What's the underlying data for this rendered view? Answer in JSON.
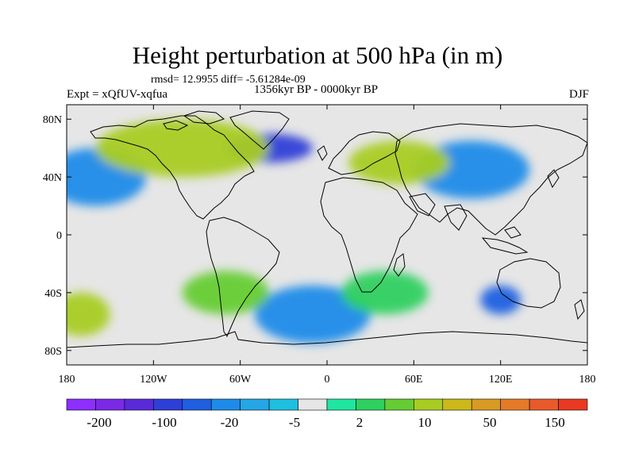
{
  "title": "Height perturbation at 500 hPa (in m)",
  "stats": "rmsd= 12.9955 diff= -5.61284e-09",
  "experiment": "Expt = xQfUV-xqfua",
  "period": "1356kyr BP - 0000kyr BP",
  "season": "DJF",
  "map": {
    "lat_ticks": [
      "80N",
      "40N",
      "0",
      "40S",
      "80S"
    ],
    "lon_ticks": [
      "180",
      "120W",
      "60W",
      "0",
      "60E",
      "120E",
      "180"
    ],
    "lat_range": [
      -90,
      90
    ],
    "lon_range": [
      -180,
      180
    ],
    "background": "#e6e6e6"
  },
  "colorbar": {
    "colors": [
      "#8c2fff",
      "#7a2ae6",
      "#5a2ad8",
      "#2e3fd6",
      "#1f5fe0",
      "#1e8be8",
      "#25a6e6",
      "#1fbfe0",
      "#e6e6e6",
      "#1fe6a0",
      "#2ed060",
      "#66cc33",
      "#a8cc22",
      "#ccb81a",
      "#d89a22",
      "#e57a28",
      "#e85a2a",
      "#e83a22"
    ],
    "labels": [
      "-200",
      "-100",
      "-20",
      "-5",
      "2",
      "10",
      "50",
      "150"
    ]
  },
  "anomalies": [
    {
      "lon": 120,
      "lat": -45,
      "a": 14,
      "b": 10,
      "level": 4
    },
    {
      "lon": 100,
      "lat": 45,
      "a": 40,
      "b": 20,
      "level": 5
    },
    {
      "lon": -40,
      "lat": 60,
      "a": 30,
      "b": 10,
      "level": 3
    },
    {
      "lon": -160,
      "lat": 40,
      "a": 35,
      "b": 20,
      "level": 5
    },
    {
      "lon": -10,
      "lat": -55,
      "a": 40,
      "b": 20,
      "level": 5
    },
    {
      "lon": 40,
      "lat": -40,
      "a": 30,
      "b": 15,
      "level": 10
    },
    {
      "lon": -100,
      "lat": 60,
      "a": 60,
      "b": 20,
      "level": 12
    },
    {
      "lon": 50,
      "lat": 50,
      "a": 35,
      "b": 15,
      "level": 12
    },
    {
      "lon": -70,
      "lat": -40,
      "a": 30,
      "b": 15,
      "level": 11
    },
    {
      "lon": -170,
      "lat": -55,
      "a": 20,
      "b": 15,
      "level": 12
    }
  ]
}
